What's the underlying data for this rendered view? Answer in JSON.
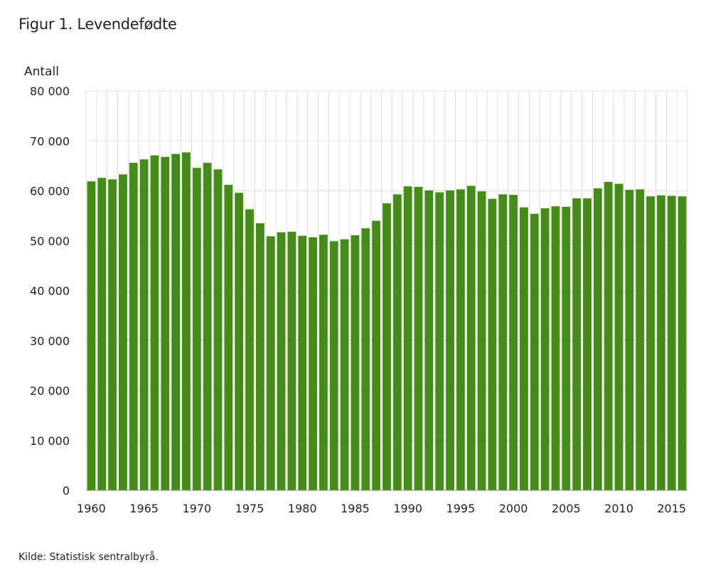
{
  "chart_data": {
    "type": "bar",
    "title": "Figur 1. Levendefødte",
    "ylabel": "Antall",
    "xlabel": "",
    "source": "Kilde: Statistisk sentralbyrå.",
    "ylim": [
      0,
      80000
    ],
    "yticks": [
      0,
      10000,
      20000,
      30000,
      40000,
      50000,
      60000,
      70000,
      80000
    ],
    "ytick_labels": [
      "0",
      "10 000",
      "20 000",
      "30 000",
      "40 000",
      "50 000",
      "60 000",
      "70 000",
      "80 000"
    ],
    "xtick_labels": [
      "1960",
      "1965",
      "1970",
      "1975",
      "1980",
      "1985",
      "1990",
      "1995",
      "2000",
      "2005",
      "2010",
      "2015"
    ],
    "grid": true,
    "bar_color": "#468a1a",
    "grid_color": "#dedede",
    "categories": [
      1960,
      1961,
      1962,
      1963,
      1964,
      1965,
      1966,
      1967,
      1968,
      1969,
      1970,
      1971,
      1972,
      1973,
      1974,
      1975,
      1976,
      1977,
      1978,
      1979,
      1980,
      1981,
      1982,
      1983,
      1984,
      1985,
      1986,
      1987,
      1988,
      1989,
      1990,
      1991,
      1992,
      1993,
      1994,
      1995,
      1996,
      1997,
      1998,
      1999,
      2000,
      2001,
      2002,
      2003,
      2004,
      2005,
      2006,
      2007,
      2008,
      2009,
      2010,
      2011,
      2012,
      2013,
      2014,
      2015,
      2016
    ],
    "values": [
      61900,
      62600,
      62300,
      63300,
      65600,
      66300,
      67100,
      66800,
      67400,
      67700,
      64600,
      65600,
      64300,
      61200,
      59600,
      56300,
      53500,
      50900,
      51700,
      51800,
      51000,
      50700,
      51200,
      49900,
      50300,
      51100,
      52500,
      54000,
      57500,
      59300,
      60900,
      60800,
      60100,
      59700,
      60100,
      60300,
      61000,
      59900,
      58400,
      59300,
      59200,
      56700,
      55400,
      56500,
      56900,
      56800,
      58500,
      58500,
      60500,
      61800,
      61400,
      60200,
      60300,
      58900,
      59100,
      59000,
      58900
    ]
  }
}
